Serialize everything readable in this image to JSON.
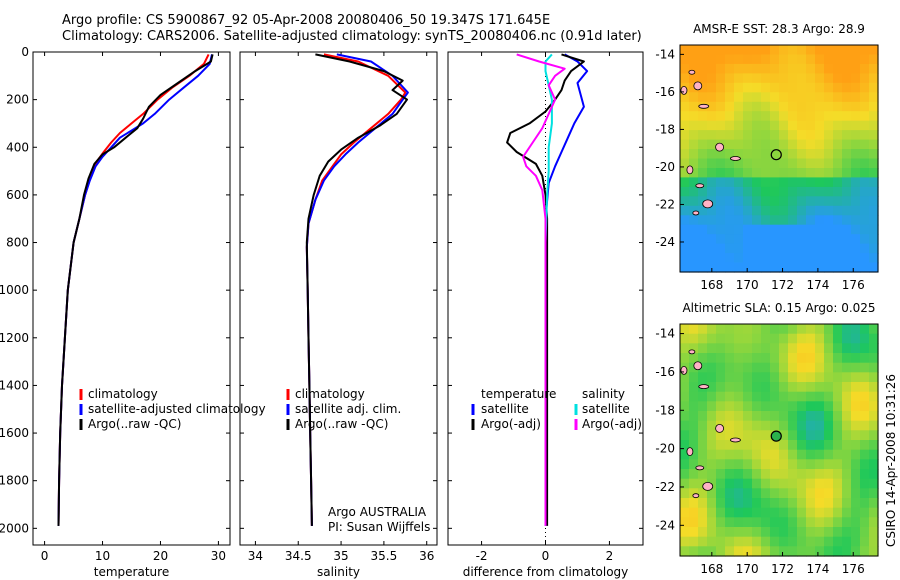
{
  "title": {
    "line1": "Argo profile: CS 5900867_92 05-Apr-2008 20080406_50 19.347S 171.645E",
    "line2": "Climatology: CARS2006. Satellite-adjusted climatology: synTS_20080406.nc (0.91d later)"
  },
  "colors": {
    "red": "#ff0000",
    "blue": "#0000ff",
    "black": "#000000",
    "cyan": "#00e0e0",
    "magenta": "#ff00ff"
  },
  "depth_axis": {
    "ticks": [
      0,
      200,
      400,
      600,
      800,
      1000,
      1200,
      1400,
      1600,
      1800,
      2000
    ],
    "range": [
      0,
      2070
    ]
  },
  "panels": [
    {
      "id": "temperature",
      "xlabel": "temperature",
      "xticks": [
        0,
        10,
        20,
        30
      ],
      "xlim": [
        -2,
        32
      ],
      "legend": [
        {
          "color": "red",
          "label": "climatology"
        },
        {
          "color": "blue",
          "label": "satellite-adjusted climatology"
        },
        {
          "color": "black",
          "label": "Argo(..raw -QC)"
        }
      ],
      "series": [
        {
          "name": "climatology",
          "color": "red",
          "points": [
            [
              28.3,
              10
            ],
            [
              27.5,
              50
            ],
            [
              25,
              100
            ],
            [
              22,
              150
            ],
            [
              19.5,
              200
            ],
            [
              17,
              260
            ],
            [
              15,
              300
            ],
            [
              13,
              340
            ],
            [
              11.5,
              380
            ],
            [
              10.2,
              420
            ],
            [
              9,
              460
            ],
            [
              8,
              520
            ],
            [
              7,
              600
            ],
            [
              6,
              700
            ],
            [
              5,
              800
            ],
            [
              4.5,
              900
            ],
            [
              4,
              1000
            ],
            [
              3.5,
              1200
            ],
            [
              3,
              1400
            ],
            [
              2.7,
              1600
            ],
            [
              2.5,
              1800
            ],
            [
              2.4,
              1990
            ]
          ]
        },
        {
          "name": "satellite-adjusted climatology",
          "color": "blue",
          "points": [
            [
              28.9,
              10
            ],
            [
              28.5,
              50
            ],
            [
              26.5,
              100
            ],
            [
              24,
              150
            ],
            [
              21.5,
              200
            ],
            [
              19,
              260
            ],
            [
              17,
              300
            ],
            [
              15,
              330
            ],
            [
              13,
              360
            ],
            [
              11.5,
              400
            ],
            [
              10,
              440
            ],
            [
              8.8,
              480
            ],
            [
              7.8,
              540
            ],
            [
              7,
              600
            ],
            [
              6,
              700
            ],
            [
              5,
              800
            ],
            [
              4.5,
              900
            ],
            [
              4,
              1000
            ],
            [
              3.5,
              1200
            ],
            [
              3,
              1400
            ],
            [
              2.7,
              1600
            ],
            [
              2.5,
              1800
            ],
            [
              2.4,
              1990
            ]
          ]
        },
        {
          "name": "Argo(..raw -QC)",
          "color": "black",
          "points": [
            [
              29,
              10
            ],
            [
              28.7,
              40
            ],
            [
              26,
              80
            ],
            [
              23,
              130
            ],
            [
              20,
              180
            ],
            [
              18,
              230
            ],
            [
              17,
              280
            ],
            [
              16,
              320
            ],
            [
              14,
              360
            ],
            [
              12,
              400
            ],
            [
              10,
              430
            ],
            [
              8.6,
              470
            ],
            [
              7.6,
              530
            ],
            [
              6.8,
              600
            ],
            [
              6,
              700
            ],
            [
              5,
              800
            ],
            [
              4.5,
              900
            ],
            [
              4,
              1000
            ],
            [
              3.5,
              1200
            ],
            [
              3,
              1400
            ],
            [
              2.7,
              1600
            ],
            [
              2.5,
              1800
            ],
            [
              2.4,
              1990
            ]
          ]
        }
      ]
    },
    {
      "id": "salinity",
      "xlabel": "salinity",
      "xticks": [
        34,
        34.5,
        35,
        35.5,
        36
      ],
      "xlim": [
        33.82,
        36.12
      ],
      "legend": [
        {
          "color": "red",
          "label": "climatology"
        },
        {
          "color": "blue",
          "label": "satellite adj. clim."
        },
        {
          "color": "black",
          "label": "Argo(..raw -QC)"
        }
      ],
      "series": [
        {
          "name": "climatology",
          "color": "red",
          "points": [
            [
              34.8,
              10
            ],
            [
              35.2,
              40
            ],
            [
              35.55,
              100
            ],
            [
              35.75,
              170
            ],
            [
              35.7,
              200
            ],
            [
              35.55,
              260
            ],
            [
              35.35,
              320
            ],
            [
              35.15,
              380
            ],
            [
              35,
              430
            ],
            [
              34.9,
              480
            ],
            [
              34.78,
              540
            ],
            [
              34.7,
              620
            ],
            [
              34.62,
              720
            ],
            [
              34.6,
              820
            ],
            [
              34.61,
              1000
            ],
            [
              34.62,
              1200
            ],
            [
              34.63,
              1400
            ],
            [
              34.64,
              1600
            ],
            [
              34.65,
              1800
            ],
            [
              34.66,
              1990
            ]
          ]
        },
        {
          "name": "satellite adj. clim.",
          "color": "blue",
          "points": [
            [
              34.95,
              10
            ],
            [
              35.35,
              40
            ],
            [
              35.6,
              100
            ],
            [
              35.78,
              170
            ],
            [
              35.72,
              200
            ],
            [
              35.6,
              260
            ],
            [
              35.4,
              320
            ],
            [
              35.2,
              380
            ],
            [
              35.05,
              430
            ],
            [
              34.92,
              480
            ],
            [
              34.8,
              540
            ],
            [
              34.7,
              620
            ],
            [
              34.62,
              720
            ],
            [
              34.6,
              820
            ],
            [
              34.61,
              1000
            ],
            [
              34.62,
              1200
            ],
            [
              34.63,
              1400
            ],
            [
              34.64,
              1600
            ],
            [
              34.65,
              1800
            ],
            [
              34.66,
              1990
            ]
          ]
        },
        {
          "name": "Argo(..raw -QC)",
          "color": "black",
          "points": [
            [
              34.7,
              10
            ],
            [
              35.1,
              40
            ],
            [
              35.5,
              80
            ],
            [
              35.72,
              120
            ],
            [
              35.6,
              160
            ],
            [
              35.77,
              200
            ],
            [
              35.65,
              260
            ],
            [
              35.45,
              310
            ],
            [
              35.2,
              360
            ],
            [
              35,
              410
            ],
            [
              34.85,
              460
            ],
            [
              34.75,
              520
            ],
            [
              34.68,
              600
            ],
            [
              34.62,
              700
            ],
            [
              34.6,
              800
            ],
            [
              34.61,
              1000
            ],
            [
              34.62,
              1200
            ],
            [
              34.63,
              1400
            ],
            [
              34.64,
              1600
            ],
            [
              34.65,
              1800
            ],
            [
              34.66,
              1990
            ]
          ]
        }
      ],
      "notes": [
        "Argo AUSTRALIA",
        "PI: Susan Wijffels"
      ]
    },
    {
      "id": "difference",
      "xlabel": "difference from climatology",
      "xticks": [
        -2,
        0,
        2
      ],
      "xlim": [
        -3.05,
        3.05
      ],
      "legend_left_title": "temperature",
      "legend_right_title": "salinity",
      "legend_left": [
        {
          "color": "blue",
          "label": "satellite"
        },
        {
          "color": "black",
          "label": "Argo(-adj)"
        }
      ],
      "legend_right": [
        {
          "color": "cyan",
          "label": "satellite"
        },
        {
          "color": "magenta",
          "label": "Argo(-adj)"
        }
      ],
      "series": [
        {
          "name": "temperature satellite",
          "color": "blue",
          "points": [
            [
              0.6,
              10
            ],
            [
              1,
              40
            ],
            [
              1.3,
              80
            ],
            [
              1,
              130
            ],
            [
              1.1,
              180
            ],
            [
              1.2,
              230
            ],
            [
              0.9,
              300
            ],
            [
              0.7,
              360
            ],
            [
              0.5,
              420
            ],
            [
              0.3,
              480
            ],
            [
              0.1,
              550
            ],
            [
              0,
              700
            ],
            [
              0,
              1000
            ],
            [
              0,
              1500
            ],
            [
              0,
              1990
            ]
          ]
        },
        {
          "name": "temperature Argo(-adj)",
          "color": "black",
          "points": [
            [
              0.5,
              10
            ],
            [
              1.2,
              40
            ],
            [
              0.8,
              80
            ],
            [
              0.6,
              120
            ],
            [
              0.5,
              160
            ],
            [
              0.3,
              200
            ],
            [
              0,
              250
            ],
            [
              -0.5,
              300
            ],
            [
              -1.1,
              340
            ],
            [
              -1.2,
              380
            ],
            [
              -0.9,
              420
            ],
            [
              -0.3,
              470
            ],
            [
              -0.1,
              520
            ],
            [
              0,
              600
            ],
            [
              0.05,
              700
            ],
            [
              0.05,
              1000
            ],
            [
              0.05,
              1500
            ],
            [
              0.05,
              1990
            ]
          ]
        },
        {
          "name": "salinity satellite",
          "color": "cyan",
          "points": [
            [
              0.2,
              10
            ],
            [
              0,
              40
            ],
            [
              0,
              80
            ],
            [
              0.1,
              140
            ],
            [
              0.2,
              200
            ],
            [
              0.2,
              300
            ],
            [
              0.1,
              400
            ],
            [
              0.1,
              500
            ],
            [
              0.05,
              600
            ],
            [
              0,
              800
            ],
            [
              0,
              1200
            ],
            [
              0,
              1600
            ],
            [
              0,
              1990
            ]
          ]
        },
        {
          "name": "salinity Argo(-adj)",
          "color": "magenta",
          "points": [
            [
              -0.9,
              10
            ],
            [
              -0.2,
              40
            ],
            [
              0.6,
              70
            ],
            [
              0.3,
              100
            ],
            [
              0.1,
              140
            ],
            [
              0.3,
              200
            ],
            [
              0.1,
              260
            ],
            [
              -0.1,
              320
            ],
            [
              -0.4,
              380
            ],
            [
              -0.7,
              440
            ],
            [
              -0.6,
              480
            ],
            [
              -0.3,
              520
            ],
            [
              -0.1,
              580
            ],
            [
              0,
              700
            ],
            [
              0,
              1000
            ],
            [
              0,
              1500
            ],
            [
              0,
              1990
            ]
          ]
        }
      ]
    }
  ],
  "maps": [
    {
      "title": "AMSR-E SST: 28.3 Argo: 28.9",
      "xticks": [
        "168",
        "170",
        "172",
        "174",
        "176"
      ],
      "yticks": [
        "-14",
        "-16",
        "-18",
        "-20",
        "-22",
        "-24"
      ],
      "marker": "Argo float position"
    },
    {
      "title": "Altimetric SLA: 0.15 Argo: 0.025",
      "xticks": [
        "168",
        "170",
        "172",
        "174",
        "176"
      ],
      "yticks": [
        "-14",
        "-16",
        "-18",
        "-20",
        "-22",
        "-24"
      ],
      "marker": "Argo float position"
    }
  ],
  "map_extent": {
    "lon": [
      166.2,
      177.4
    ],
    "lat": [
      -25.6,
      -13.5
    ],
    "argo_lon": 171.645,
    "argo_lat": -19.347
  },
  "stamp": "CSIRO 14-Apr-2008 10:31:26"
}
